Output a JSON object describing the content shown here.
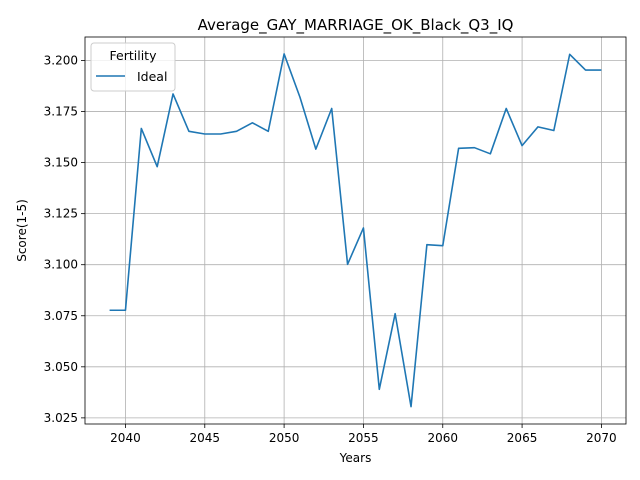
{
  "chart_data": {
    "type": "line",
    "title": "Average_GAY_MARRIAGE_OK_Black_Q3_IQ",
    "xlabel": "Years",
    "ylabel": "Score(1-5)",
    "xlim": [
      2037.45,
      2071.55
    ],
    "ylim": [
      3.022,
      3.2115
    ],
    "xticks": [
      2040,
      2045,
      2050,
      2055,
      2060,
      2065,
      2070
    ],
    "yticks": [
      3.025,
      3.05,
      3.075,
      3.1,
      3.125,
      3.15,
      3.175,
      3.2
    ],
    "ytick_labels": [
      "3.025",
      "3.050",
      "3.075",
      "3.100",
      "3.125",
      "3.150",
      "3.175",
      "3.200"
    ],
    "grid": true,
    "legend": {
      "title": "Fertility",
      "placement": "top-left"
    },
    "series": [
      {
        "name": "Ideal",
        "color": "#1f77b4",
        "x": [
          2039,
          2040,
          2041,
          2042,
          2043,
          2044,
          2045,
          2046,
          2047,
          2048,
          2049,
          2050,
          2051,
          2052,
          2053,
          2054,
          2055,
          2056,
          2057,
          2058,
          2059,
          2060,
          2061,
          2062,
          2063,
          2064,
          2065,
          2066,
          2067,
          2068,
          2069,
          2070
        ],
        "y": [
          3.0777,
          3.0777,
          3.1667,
          3.148,
          3.1836,
          3.1653,
          3.164,
          3.164,
          3.1653,
          3.1695,
          3.1653,
          3.2032,
          3.182,
          3.1566,
          3.1765,
          3.1002,
          3.118,
          3.039,
          3.076,
          3.0305,
          3.1098,
          3.1093,
          3.157,
          3.1573,
          3.1543,
          3.1765,
          3.1583,
          3.1675,
          3.1657,
          3.203,
          3.1953,
          3.1953
        ]
      }
    ]
  }
}
